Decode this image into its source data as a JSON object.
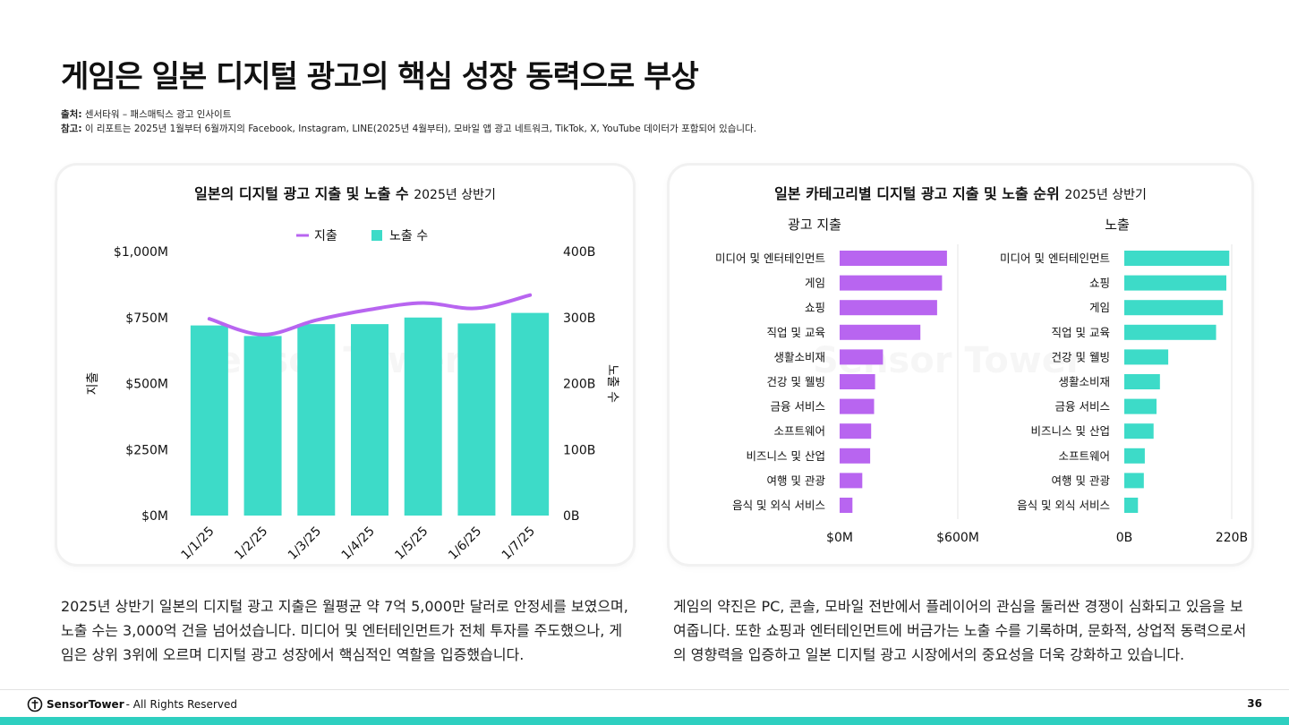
{
  "page": {
    "title": "게임은 일본 디지털 광고의 핵심 성장 동력으로 부상",
    "source_label": "출처:",
    "source_text": " 센서타워 – 패스매틱스 광고 인사이트",
    "note_label": "참고:",
    "note_text": " 이 리포트는 2025년 1월부터 6월까지의 Facebook, Instagram, LINE(2025년 4월부터), 모바일 앱 광고 네트워크, TikTok, X, YouTube 데이터가 포함되어 있습니다.",
    "watermark": "Sensor Tower",
    "desc_left": "2025년 상반기 일본의 디지털 광고 지출은 월평균 약 7억 5,000만 달러로 안정세를 보였으며, 노출 수는 3,000억 건을 넘어섰습니다. 미디어 및 엔터테인먼트가 전체 투자를 주도했으나, 게임은 상위 3위에 오르며 디지털 광고 성장에서 핵심적인 역할을 입증했습니다.",
    "desc_right": "게임의 약진은 PC, 콘솔, 모바일 전반에서 플레이어의 관심을 둘러싼 경쟁이 심화되고 있음을 보여줍니다. 또한 쇼핑과 엔터테인먼트에 버금가는 노출 수를 기록하며, 문화적, 상업적 동력으로서의 영향력을 입증하고 일본 디지털 광고 시장에서의 중요성을 더욱 강화하고 있습니다.",
    "footer_brand": "SensorTower",
    "footer_rights": " - All Rights Reserved",
    "page_number": "36"
  },
  "colors": {
    "spend": "#b865f0",
    "impressions": "#3ddbc8",
    "text": "#111111",
    "footer": "#2ecfc0"
  },
  "chart_data": [
    {
      "type": "bar+line",
      "title": "일본의 디지털 광고 지출 및 노출 수",
      "subtitle": "2025년 상반기",
      "categories": [
        "1/1/25",
        "1/2/25",
        "1/3/25",
        "1/4/25",
        "1/5/25",
        "1/6/25",
        "1/7/25"
      ],
      "series": [
        {
          "name": "지출",
          "kind": "line",
          "axis": "left",
          "values": [
            745,
            685,
            740,
            780,
            805,
            785,
            835
          ]
        },
        {
          "name": "노출 수",
          "kind": "bar",
          "axis": "right",
          "values": [
            288,
            272,
            290,
            290,
            300,
            291,
            307
          ]
        }
      ],
      "ylabel_left": "지출",
      "ylabel_right": "노출 수",
      "ylim_left": [
        0,
        1000
      ],
      "ylim_right": [
        0,
        400
      ],
      "yticks_left": [
        "$0M",
        "$250M",
        "$500M",
        "$750M",
        "$1,000M"
      ],
      "yticks_right": [
        "0B",
        "100B",
        "200B",
        "300B",
        "400B"
      ],
      "legend": "top-center",
      "grid": false
    },
    {
      "type": "bar",
      "orientation": "horizontal",
      "title": "일본 카테고리별 디지털 광고 지출 및 노출 순위",
      "subtitle": "2025년 상반기",
      "panels": [
        {
          "name": "광고 지출",
          "categories": [
            "미디어 및 엔터테인먼트",
            "게임",
            "쇼핑",
            "직업 및 교육",
            "생활소비재",
            "건강 및 웰빙",
            "금융 서비스",
            "소프트웨어",
            "비즈니스 및 산업",
            "여행 및 관광",
            "음식 및 외식 서비스"
          ],
          "values": [
            545,
            520,
            495,
            410,
            220,
            180,
            175,
            160,
            155,
            115,
            65
          ],
          "xlim": [
            0,
            600
          ],
          "xticks": [
            "$0M",
            "$600M"
          ]
        },
        {
          "name": "노출",
          "categories": [
            "미디어 및 엔터테인먼트",
            "쇼핑",
            "게임",
            "직업 및 교육",
            "건강 및 웰빙",
            "생활소비재",
            "금융 서비스",
            "비즈니스 및 산업",
            "소프트웨어",
            "여행 및 관광",
            "음식 및 외식 서비스"
          ],
          "values": [
            215,
            209,
            202,
            188,
            90,
            73,
            66,
            60,
            42,
            40,
            28
          ],
          "xlim": [
            0,
            220
          ],
          "xticks": [
            "0B",
            "220B"
          ]
        }
      ]
    }
  ]
}
